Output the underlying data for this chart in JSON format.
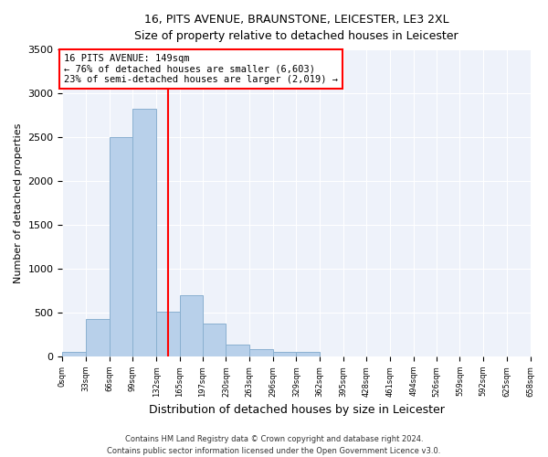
{
  "title_line1": "16, PITS AVENUE, BRAUNSTONE, LEICESTER, LE3 2XL",
  "title_line2": "Size of property relative to detached houses in Leicester",
  "xlabel": "Distribution of detached houses by size in Leicester",
  "ylabel": "Number of detached properties",
  "bar_color": "#b8d0ea",
  "bar_edge_color": "#8ab0d0",
  "vline_x": 149,
  "vline_color": "red",
  "annotation_line1": "16 PITS AVENUE: 149sqm",
  "annotation_line2": "← 76% of detached houses are smaller (6,603)",
  "annotation_line3": "23% of semi-detached houses are larger (2,019) →",
  "bins": [
    0,
    33,
    66,
    99,
    132,
    165,
    197,
    230,
    263,
    296,
    329,
    362,
    395,
    428,
    461,
    494,
    526,
    559,
    592,
    625,
    658
  ],
  "counts": [
    50,
    430,
    2500,
    2820,
    510,
    700,
    380,
    140,
    80,
    50,
    55,
    0,
    0,
    0,
    0,
    0,
    0,
    0,
    0,
    0
  ],
  "ylim": [
    0,
    3500
  ],
  "yticks": [
    0,
    500,
    1000,
    1500,
    2000,
    2500,
    3000,
    3500
  ],
  "background_color": "#eef2fa",
  "footer_line1": "Contains HM Land Registry data © Crown copyright and database right 2024.",
  "footer_line2": "Contains public sector information licensed under the Open Government Licence v3.0."
}
